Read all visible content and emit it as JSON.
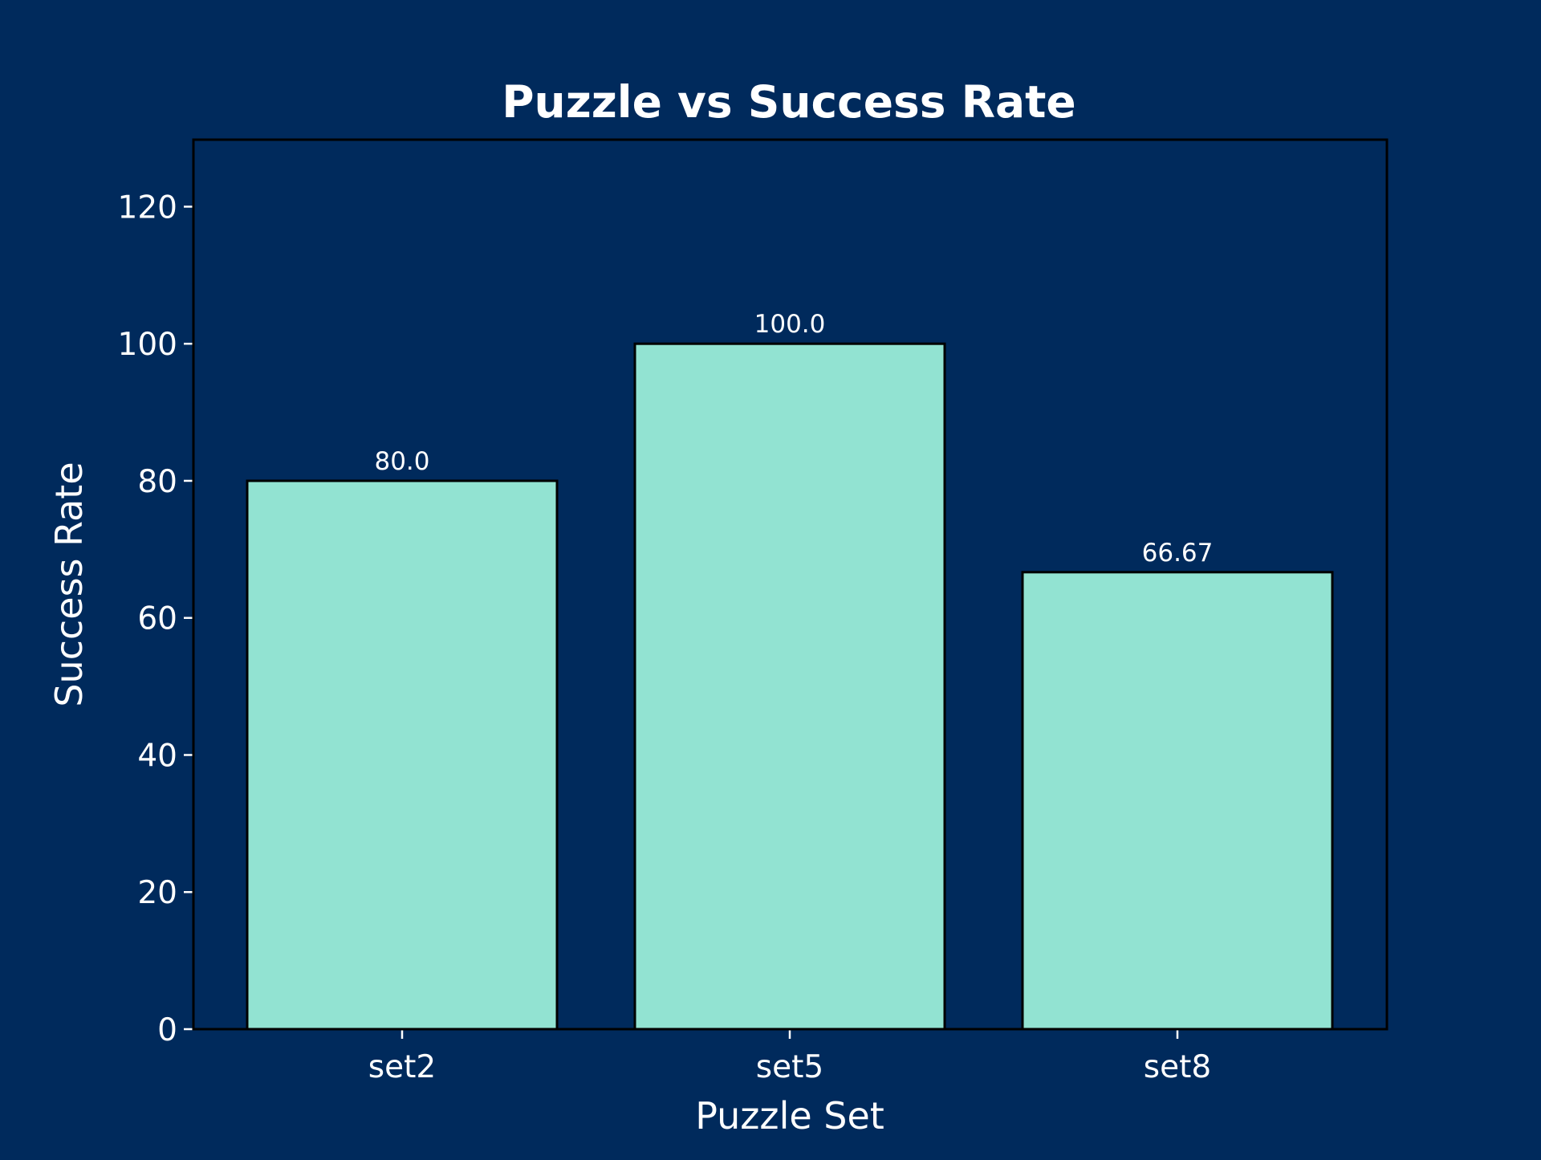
{
  "chart_data": {
    "type": "bar",
    "title": "Puzzle vs Success Rate",
    "xlabel": "Puzzle Set",
    "ylabel": "Success Rate",
    "categories": [
      "set2",
      "set5",
      "set8"
    ],
    "values": [
      80.0,
      100.0,
      66.67
    ],
    "value_labels": [
      "80.0",
      "100.0",
      "66.67"
    ],
    "ylim": [
      0,
      130
    ],
    "yticks": [
      0,
      20,
      40,
      60,
      80,
      100,
      120
    ],
    "grid": false,
    "legend": "none",
    "colors": {
      "background": "#002a5c",
      "bar_fill": "#92e3d2",
      "bar_edge": "#000000",
      "text": "#ffffff"
    }
  }
}
